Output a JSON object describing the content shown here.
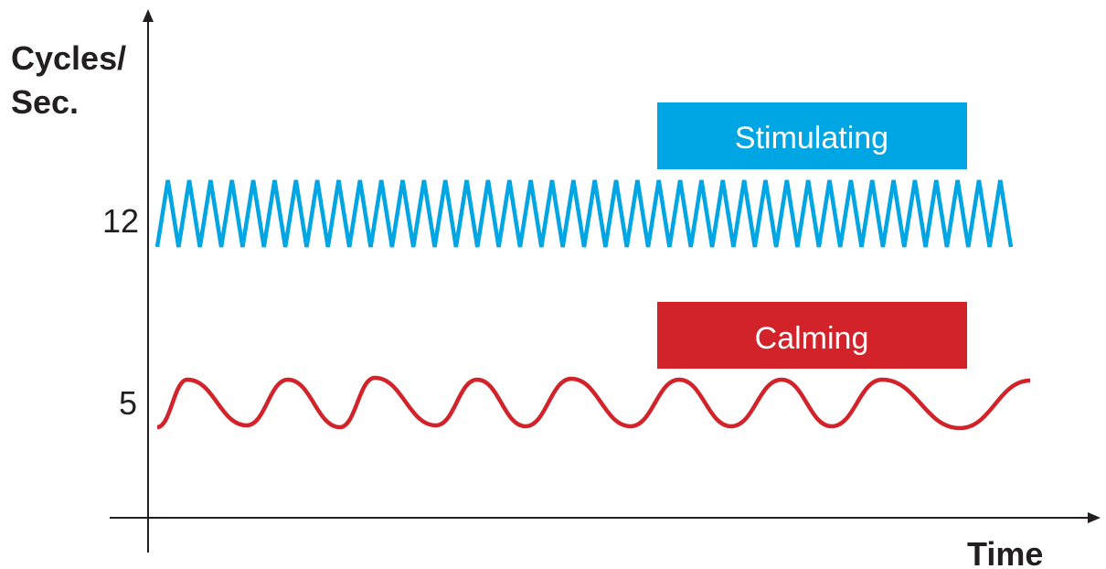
{
  "axes": {
    "y_label_line1": "Cycles/",
    "y_label_line2": "Sec.",
    "x_label": "Time",
    "y_ticks": [
      "12",
      "5"
    ]
  },
  "series": {
    "stimulating": {
      "label": "Stimulating",
      "color": "#00a5e3",
      "cycles_per_sec": 12,
      "wave": "zigzag"
    },
    "calming": {
      "label": "Calming",
      "color": "#d2232a",
      "cycles_per_sec": 5,
      "wave": "smooth"
    }
  }
}
